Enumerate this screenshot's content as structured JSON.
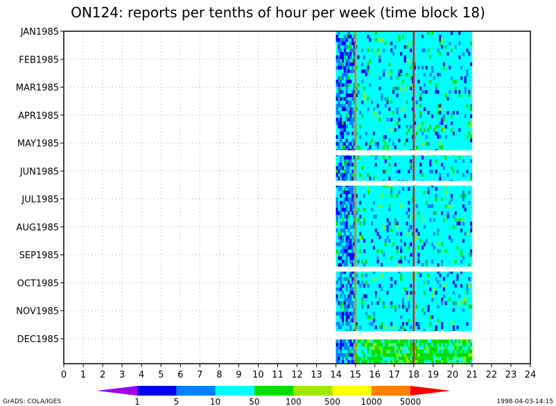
{
  "chart_data": {
    "type": "heatmap",
    "title": "ON124: reports per tenths of hour per week (time block 18)",
    "xlim": [
      0,
      24
    ],
    "x_ticks": [
      "0",
      "1",
      "2",
      "3",
      "4",
      "5",
      "6",
      "7",
      "8",
      "9",
      "10",
      "11",
      "12",
      "13",
      "14",
      "15",
      "16",
      "17",
      "18",
      "19",
      "20",
      "21",
      "22",
      "23",
      "24"
    ],
    "y_ticks": [
      "JAN1985",
      "FEB1985",
      "MAR1985",
      "APR1985",
      "MAY1985",
      "JUN1985",
      "JUL1985",
      "AUG1985",
      "SEP1985",
      "OCT1985",
      "NOV1985",
      "DEC1985"
    ],
    "grid": true,
    "data_x_range": [
      14,
      21
    ],
    "gaps_weeks": [
      [
        17.2,
        17.9
      ],
      [
        21.6,
        22.3
      ],
      [
        34.0,
        34.7
      ],
      [
        43.3,
        44.5
      ]
    ],
    "weeks_total": 48,
    "vertical_lines": [
      {
        "x": 15.0,
        "color": "#f07800"
      },
      {
        "x": 18.0,
        "color": "#e81010"
      }
    ],
    "colorbar": {
      "labels": [
        "1",
        "5",
        "10",
        "50",
        "100",
        "500",
        "1000",
        "5000"
      ],
      "colors": [
        "#a000f0",
        "#0000f0",
        "#0080ff",
        "#00ffff",
        "#00e000",
        "#a0e800",
        "#ffff00",
        "#ff8000",
        "#ff0000"
      ]
    }
  },
  "footer": {
    "left": "GrADS: COLA/IGES",
    "right": "1998-04-03-14:15"
  }
}
